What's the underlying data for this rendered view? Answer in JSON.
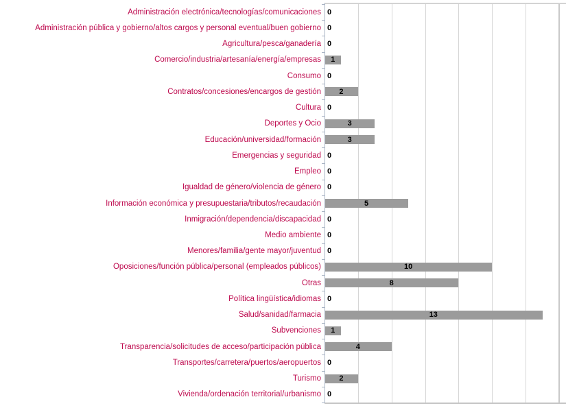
{
  "chart_data": {
    "type": "bar",
    "orientation": "horizontal",
    "categories": [
      "Administración electrónica/tecnologías/comunicaciones",
      "Administración pública y gobierno/altos cargos y personal eventual/buen gobierno",
      "Agricultura/pesca/ganadería",
      "Comercio/industria/artesanía/energía/empresas",
      "Consumo",
      "Contratos/concesiones/encargos de gestión",
      "Cultura",
      "Deportes y Ocio",
      "Educación/universidad/formación",
      "Emergencias y seguridad",
      "Empleo",
      "Igualdad de género/violencia de género",
      "Información económica y presupuestaria/tributos/recaudación",
      "Inmigración/dependencia/discapacidad",
      "Medio ambiente",
      "Menores/familia/gente mayor/juventud",
      "Oposiciones/función pública/personal (empleados públicos)",
      "Otras",
      "Política lingüística/idiomas",
      "Salud/sanidad/farmacia",
      "Subvenciones",
      "Transparencia/solicitudes de acceso/participación pública",
      "Transportes/carretera/puertos/aeropuertos",
      "Turismo",
      "Vivienda/ordenación territorial/urbanismo"
    ],
    "values": [
      0,
      0,
      0,
      1,
      0,
      2,
      0,
      3,
      3,
      0,
      0,
      0,
      5,
      0,
      0,
      0,
      10,
      8,
      0,
      13,
      1,
      4,
      0,
      2,
      0
    ],
    "xlim": [
      0,
      14
    ],
    "grid": true,
    "gridline_interval": 2,
    "legend_position": "none",
    "value_labels": "inside-center",
    "colors": {
      "bar": "#9B9B9B",
      "category_label": "#BE0A4E",
      "value_label": "#000000",
      "gridline": "#D6D6D6",
      "axis_line": "#A9B4C4",
      "frame": "#D3D3D3",
      "background": "#FFFFFF"
    }
  }
}
